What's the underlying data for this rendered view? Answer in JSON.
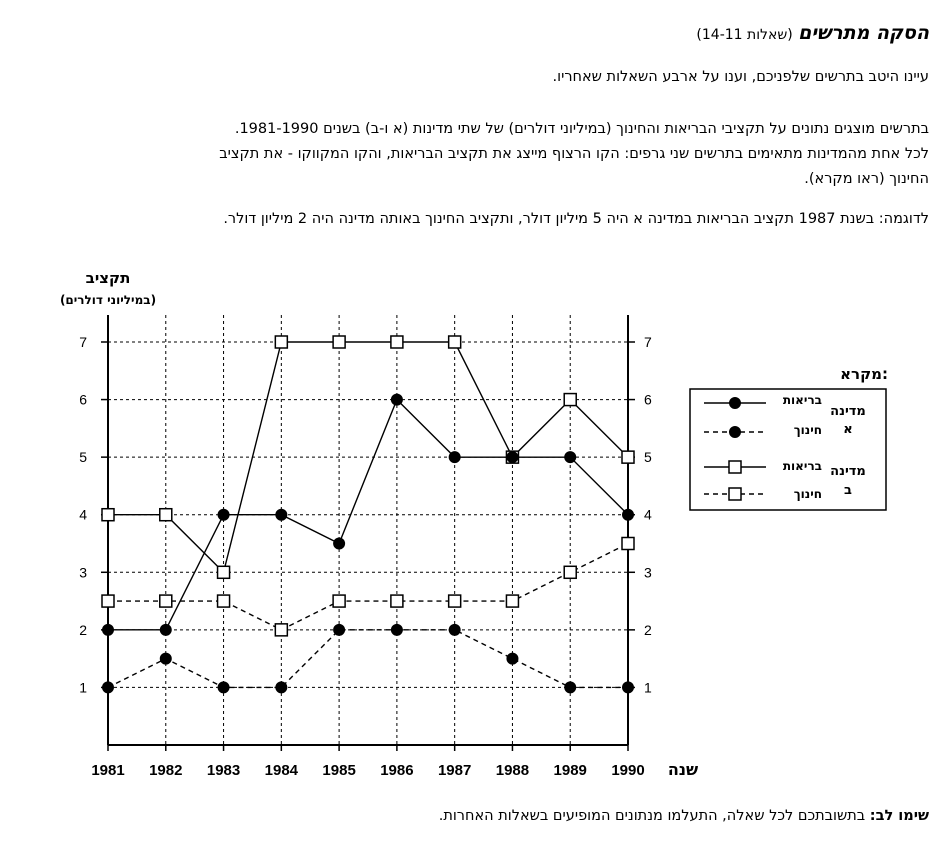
{
  "header": {
    "title": "הסקה מתרשים",
    "subtitle": "(שאלות 14-11)"
  },
  "intro": "עיינו היטב בתרשים שלפניכם, וענו על ארבע השאלות שאחריו.",
  "description": [
    "בתרשים מוצגים נתונים על תקציבי הבריאות והחינוך (במיליוני דולרים) של שתי מדינות (א ו-ב) בשנים 1981-1990.",
    "לכל אחת מהמדינות מתאימים בתרשים שני גרפים: הקו הרצוף מייצג את תקציב הבריאות, והקו המקווקו - את תקציב",
    "החינוך (ראו מקרא)."
  ],
  "example": "לדוגמה: בשנת 1987 תקציב הבריאות במדינה א היה 5 מיליון דולר, ותקציב החינוך באותה מדינה היה 2 מיליון דולר.",
  "note": {
    "label": "שימו לב:",
    "text": " בתשובתכם לכל שאלה, התעלמו מנתונים המופיעים בשאלות האחרות."
  },
  "legend": {
    "title": "מקרא:",
    "country_a_line1": "מדינה",
    "country_a_line2": "א",
    "country_b_line1": "מדינה",
    "country_b_line2": "ב",
    "health": "בריאות",
    "education": "חינוך"
  },
  "chart_data": {
    "type": "line",
    "ylabel": "תקציב",
    "ylabel_sub": "(במיליוני דולרים)",
    "xlabel": "שנה",
    "x": [
      1981,
      1982,
      1983,
      1984,
      1985,
      1986,
      1987,
      1988,
      1989,
      1990
    ],
    "ylim": [
      0,
      7
    ],
    "yticks": [
      1,
      2,
      3,
      4,
      5,
      6,
      7
    ],
    "grid": true,
    "legend_position": "right",
    "series": [
      {
        "name": "מדינה א - בריאות",
        "country": "א",
        "kind": "בריאות",
        "marker": "circle",
        "line": "solid",
        "values": [
          2,
          2,
          4,
          4,
          3.5,
          6,
          5,
          5,
          5,
          4
        ]
      },
      {
        "name": "מדינה א - חינוך",
        "country": "א",
        "kind": "חינוך",
        "marker": "circle",
        "line": "dashed",
        "values": [
          1,
          1.5,
          1,
          1,
          2,
          2,
          2,
          1.5,
          1,
          1
        ]
      },
      {
        "name": "מדינה ב - בריאות",
        "country": "ב",
        "kind": "בריאות",
        "marker": "square",
        "line": "solid",
        "values": [
          4,
          4,
          3,
          7,
          7,
          7,
          7,
          5,
          6,
          5
        ]
      },
      {
        "name": "מדינה ב - חינוך",
        "country": "ב",
        "kind": "חינוך",
        "marker": "square",
        "line": "dashed",
        "values": [
          2.5,
          2.5,
          2.5,
          2,
          2.5,
          2.5,
          2.5,
          2.5,
          3,
          3.5
        ]
      }
    ]
  }
}
